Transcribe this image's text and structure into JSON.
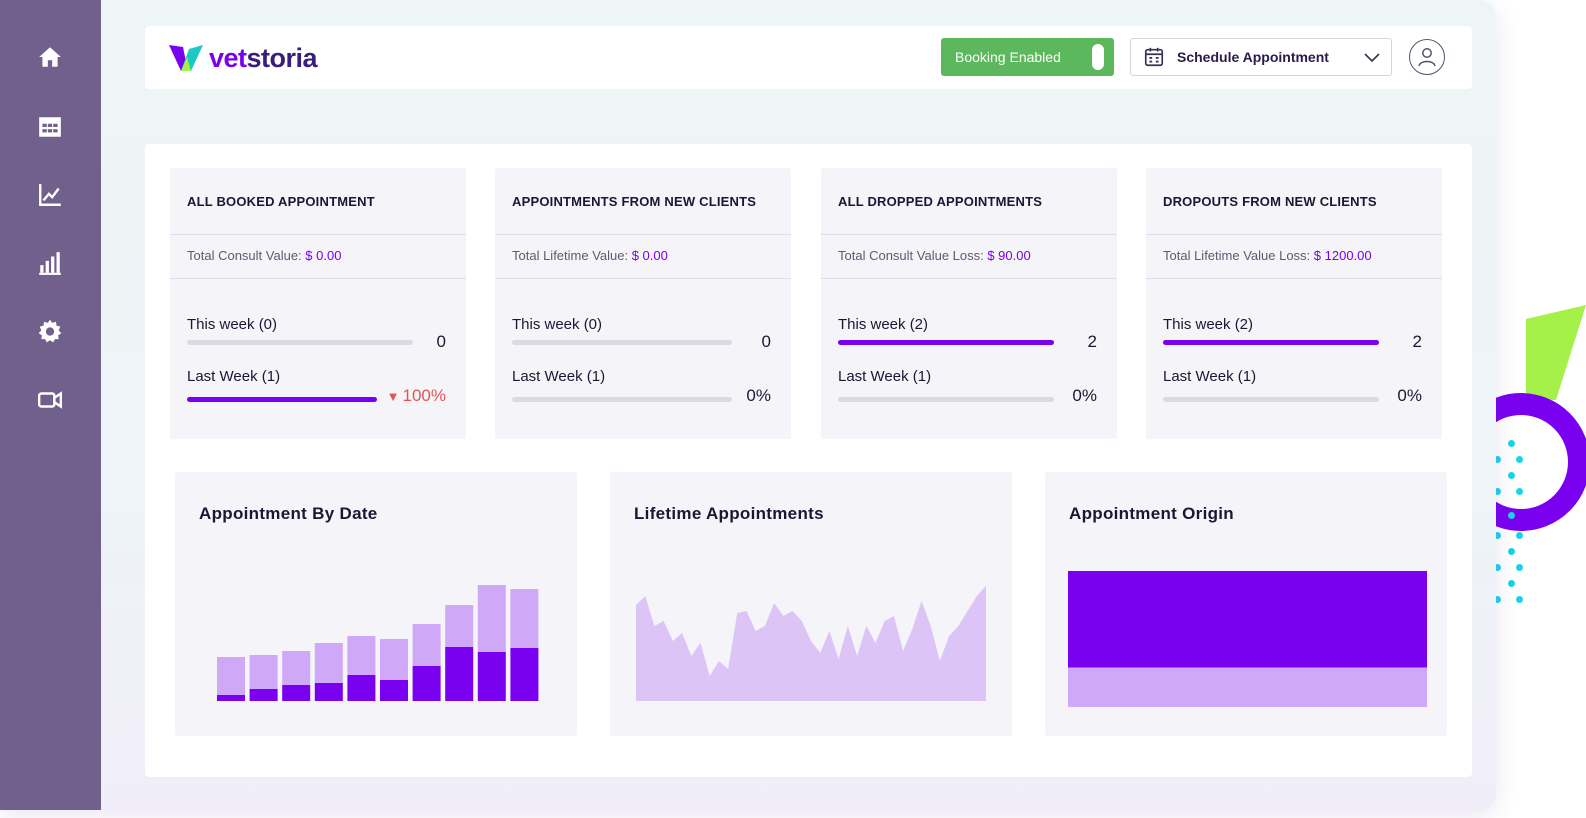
{
  "brand": {
    "logo_vet": "vet",
    "logo_storia": "storia",
    "colors": {
      "primary": "#7a00f0",
      "secondary": "#3a1f7a",
      "sidebar": "#715f8c",
      "success": "#5cb85c",
      "danger": "#e25555",
      "light_purple": "#cfa9f7"
    }
  },
  "sidebar": {
    "items": [
      {
        "name": "home-icon"
      },
      {
        "name": "calendar-grid-icon"
      },
      {
        "name": "line-chart-icon"
      },
      {
        "name": "bar-chart-icon"
      },
      {
        "name": "settings-gear-icon"
      },
      {
        "name": "video-camera-icon"
      }
    ]
  },
  "header": {
    "booking_label": "Booking Enabled",
    "booking_enabled": true,
    "schedule_label": "Schedule Appointment",
    "schedule_icon": "calendar-icon",
    "avatar_icon": "user-avatar-icon"
  },
  "stats": [
    {
      "title": "ALL BOOKED APPOINTMENT",
      "sub_label": "Total Consult Value: ",
      "sub_value": "$ 0.00",
      "this_week_label": "This week (0)",
      "this_week_value": "0",
      "this_week_fill": 0,
      "last_week_label": "Last Week (1)",
      "last_week_value": "100%",
      "last_week_trend": "down",
      "last_week_fill": 1
    },
    {
      "title": "APPOINTMENTS FROM NEW CLIENTS",
      "sub_label": "Total Lifetime Value: ",
      "sub_value": "$ 0.00",
      "this_week_label": "This week (0)",
      "this_week_value": "0",
      "this_week_fill": 0,
      "last_week_label": "Last Week (1)",
      "last_week_value": "0%",
      "last_week_trend": "none",
      "last_week_fill": 0
    },
    {
      "title": "ALL DROPPED APPOINTMENTS",
      "sub_label": "Total Consult Value Loss: ",
      "sub_value": "$ 90.00",
      "this_week_label": "This week (2)",
      "this_week_value": "2",
      "this_week_fill": 1,
      "last_week_label": "Last Week (1)",
      "last_week_value": "0%",
      "last_week_trend": "none",
      "last_week_fill": 0
    },
    {
      "title": "DROPOUTS FROM NEW CLIENTS",
      "sub_label": "Total Lifetime Value Loss: ",
      "sub_value": "$ 1200.00",
      "this_week_label": "This week (2)",
      "this_week_value": "2",
      "this_week_fill": 1,
      "last_week_label": "Last Week (1)",
      "last_week_value": "0%",
      "last_week_trend": "none",
      "last_week_fill": 0
    }
  ],
  "charts": {
    "by_date_title": "Appointment By Date",
    "lifetime_title": "Lifetime Appointments",
    "origin_title": "Appointment Origin"
  },
  "chart_data": [
    {
      "type": "bar",
      "stacked": true,
      "title": "Appointment By Date",
      "series": [
        {
          "color": "#7a00f0",
          "values": [
            6,
            12,
            16,
            18,
            26,
            21,
            35,
            54,
            49,
            53
          ]
        },
        {
          "color": "#cfa9f7",
          "values": [
            38,
            34,
            34,
            40,
            39,
            41,
            42,
            42,
            67,
            59
          ]
        }
      ]
    },
    {
      "type": "area",
      "title": "Lifetime Appointments",
      "series": [
        {
          "color": "#dcc4f7",
          "values": [
            96,
            105,
            75,
            80,
            60,
            68,
            45,
            58,
            25,
            40,
            32,
            88,
            90,
            70,
            75,
            98,
            85,
            90,
            80,
            60,
            48,
            70,
            42,
            75,
            45,
            75,
            58,
            80,
            85,
            50,
            72,
            100,
            75,
            40,
            65,
            75,
            90,
            105,
            115
          ]
        }
      ]
    },
    {
      "type": "bar",
      "stacked": true,
      "orientation": "horizontal",
      "title": "Appointment Origin",
      "series": [
        {
          "color": "#7a00f0",
          "values": [
            71
          ]
        },
        {
          "color": "#cfa9f7",
          "values": [
            29
          ]
        }
      ]
    }
  ]
}
